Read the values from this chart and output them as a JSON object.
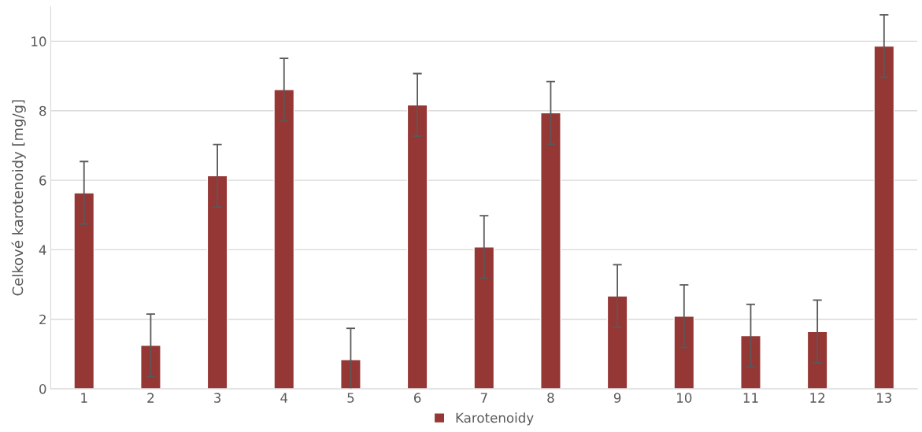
{
  "chart_data": {
    "type": "bar",
    "ylabel": "Celkové karotenoidy [mg/g]",
    "categories": [
      "1",
      "2",
      "3",
      "4",
      "5",
      "6",
      "7",
      "8",
      "9",
      "10",
      "11",
      "12",
      "13"
    ],
    "series": [
      {
        "name": "Karotenoidy",
        "color": "#953735",
        "values": [
          5.64,
          1.25,
          6.13,
          8.61,
          0.84,
          8.17,
          4.08,
          7.94,
          2.67,
          2.09,
          1.53,
          1.65,
          9.86
        ],
        "errors": [
          0.9,
          0.9,
          0.9,
          0.9,
          0.9,
          0.9,
          0.9,
          0.9,
          0.9,
          0.9,
          0.9,
          0.9,
          0.9
        ]
      }
    ],
    "ylim": [
      0,
      11
    ],
    "yticks": [
      0,
      2,
      4,
      6,
      8,
      10
    ],
    "grid": "y",
    "legend": "bottom"
  }
}
